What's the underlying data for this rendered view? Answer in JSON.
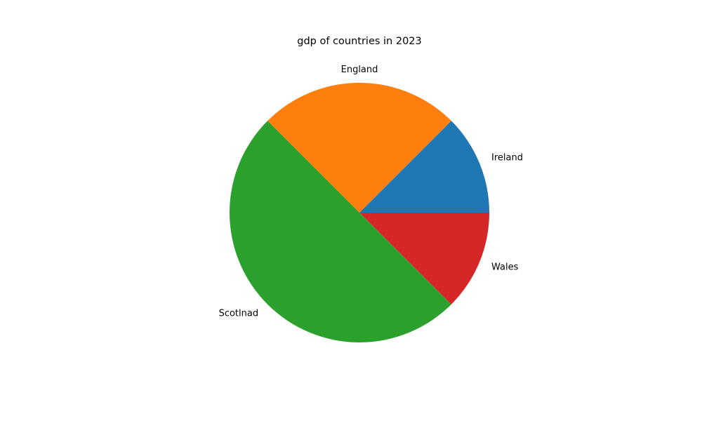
{
  "chart_data": {
    "type": "pie",
    "title": "gdp of countries in 2023",
    "categories": [
      "Ireland",
      "England",
      "Scotlnad",
      "Wales"
    ],
    "values": [
      12.5,
      25,
      50,
      12.5
    ],
    "colors": [
      "#1f77b4",
      "#ff7f0e",
      "#2ca02c",
      "#d62728"
    ],
    "start_angle_deg": 0,
    "direction": "counterclockwise",
    "legend": "none"
  }
}
